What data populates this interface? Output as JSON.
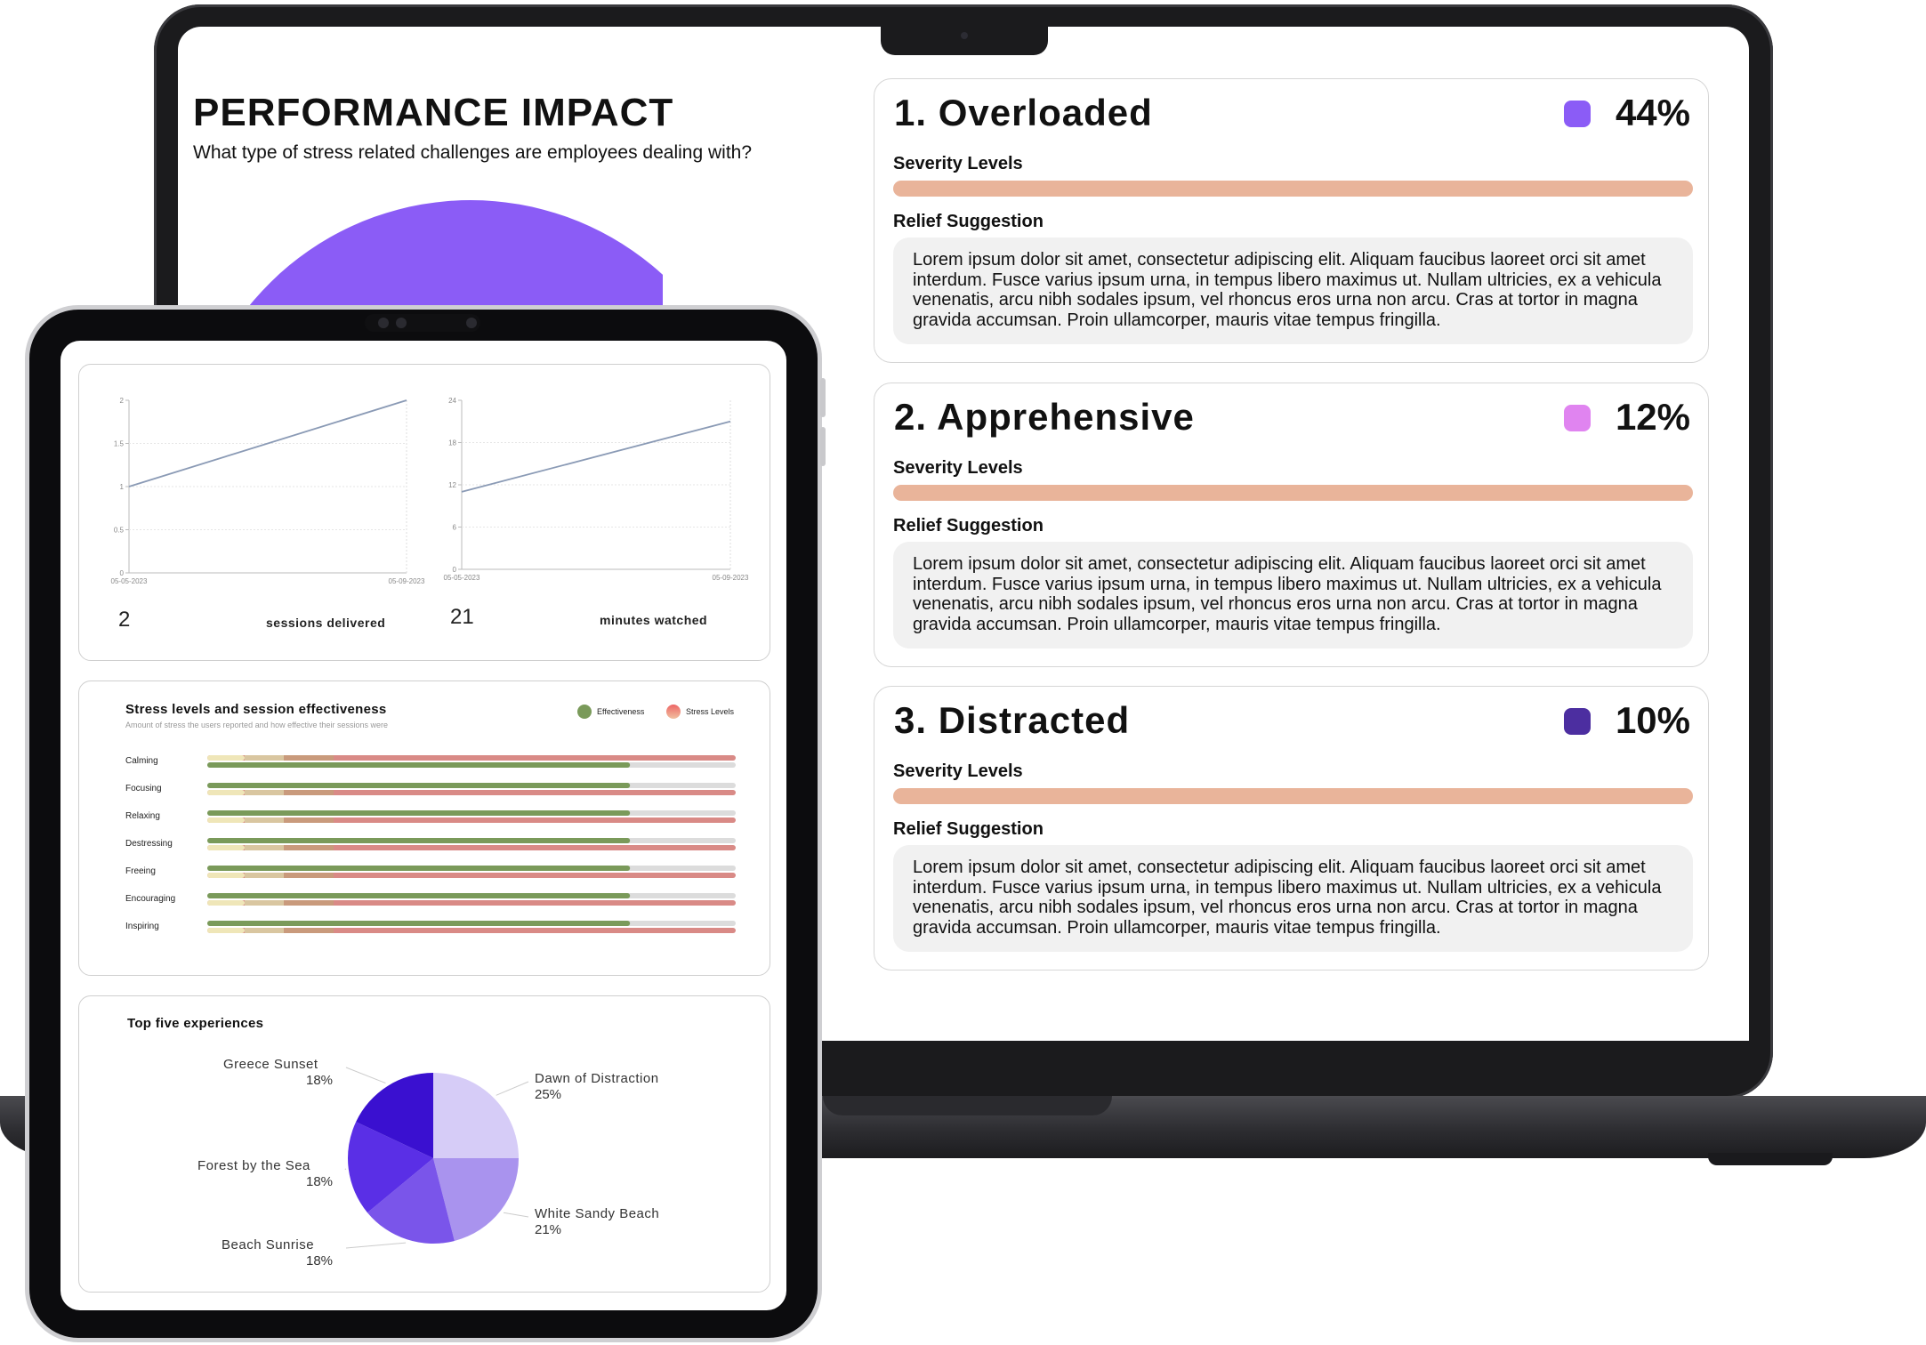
{
  "laptop": {
    "title": "PERFORMANCE IMPACT",
    "subtitle": "What type of stress related challenges are employees dealing with?",
    "challenges": [
      {
        "rank_title": "1. Overloaded",
        "percent": "44%",
        "color": "#8b5cf6",
        "severity_label": "Severity Levels",
        "relief_label": "Relief Suggestion",
        "relief_text": "Lorem ipsum dolor sit amet, consectetur adipiscing elit. Aliquam faucibus laoreet orci sit amet interdum. Fusce varius ipsum urna, in tempus libero maximus ut. Nullam ultricies, ex a vehicula venenatis, arcu nibh sodales ipsum, vel rhoncus eros urna non arcu. Cras at tortor in magna gravida accumsan. Proin ullamcorper, mauris vitae tempus fringilla."
      },
      {
        "rank_title": "2. Apprehensive",
        "percent": "12%",
        "color": "#e084f0",
        "severity_label": "Severity Levels",
        "relief_label": "Relief Suggestion",
        "relief_text": "Lorem ipsum dolor sit amet, consectetur adipiscing elit. Aliquam faucibus laoreet orci sit amet interdum. Fusce varius ipsum urna, in tempus libero maximus ut. Nullam ultricies, ex a vehicula venenatis, arcu nibh sodales ipsum, vel rhoncus eros urna non arcu. Cras at tortor in magna gravida accumsan. Proin ullamcorper, mauris vitae tempus fringilla."
      },
      {
        "rank_title": "3. Distracted",
        "percent": "10%",
        "color": "#4c2ea0",
        "severity_label": "Severity Levels",
        "relief_label": "Relief Suggestion",
        "relief_text": "Lorem ipsum dolor sit amet, consectetur adipiscing elit. Aliquam faucibus laoreet orci sit amet interdum. Fusce varius ipsum urna, in tempus libero maximus ut. Nullam ultricies, ex a vehicula venenatis, arcu nibh sodales ipsum, vel rhoncus eros urna non arcu. Cras at tortor in magna gravida accumsan. Proin ullamcorper, mauris vitae tempus fringilla."
      }
    ],
    "severity_bar_color": "#e9b49a"
  },
  "tablet": {
    "sessions": {
      "value": "2",
      "label": "sessions delivered"
    },
    "minutes": {
      "value": "21",
      "label": "minutes watched"
    },
    "stress_chart": {
      "title": "Stress levels and session effectiveness",
      "subtitle": "Amount of stress the users reported and how effective their sessions were",
      "legend": [
        {
          "label": "Effectiveness",
          "color": "#7a9a5a"
        },
        {
          "label": "Stress Levels",
          "color": "#e3a08f"
        }
      ]
    },
    "top_five": {
      "title": "Top five experiences"
    }
  },
  "chart_data": [
    {
      "type": "pie",
      "categories": [
        "Overloaded",
        "Apprehensive",
        "Distracted"
      ],
      "values": [
        44,
        12,
        10
      ],
      "colors": [
        "#8b5cf6",
        "#e084f0",
        "#4c2ea0"
      ]
    },
    {
      "type": "line",
      "x": [
        "05-05-2023",
        "05-09-2023"
      ],
      "series": [
        {
          "values": [
            1,
            2
          ]
        }
      ],
      "x_ticks": [
        "05-05-2023",
        "05-09-2023"
      ],
      "y_ticks": [
        "0",
        "0.5",
        "1",
        "1.5",
        "2"
      ],
      "ylim": [
        0,
        2
      ]
    },
    {
      "type": "line",
      "x": [
        "05-05-2023",
        "05-09-2023"
      ],
      "series": [
        {
          "values": [
            11,
            21
          ]
        }
      ],
      "x_ticks": [
        "05-05-2023",
        "05-09-2023"
      ],
      "y_ticks": [
        "0",
        "6",
        "12",
        "18",
        "24"
      ],
      "ylim": [
        0,
        24
      ]
    },
    {
      "type": "bar",
      "orientation": "horizontal",
      "categories": [
        "Calming",
        "Focusing",
        "Relaxing",
        "Destressing",
        "Freeing",
        "Encouraging",
        "Inspiring"
      ],
      "series": [
        {
          "name": "Effectiveness",
          "values": [
            0.8,
            0.8,
            0.8,
            0.8,
            0.8,
            0.8,
            0.8
          ]
        },
        {
          "name": "Stress Levels",
          "values": [
            1.0,
            1.0,
            1.0,
            1.0,
            1.0,
            1.0,
            1.0
          ]
        }
      ],
      "xlim": [
        0,
        1
      ]
    },
    {
      "type": "pie",
      "title": "Top five experiences",
      "categories": [
        "Dawn of Distraction",
        "White Sandy Beach",
        "Beach Sunrise",
        "Forest by the Sea",
        "Greece Sunset"
      ],
      "values": [
        25,
        21,
        18,
        18,
        18
      ],
      "labels": [
        "25%",
        "21%",
        "18%",
        "18%",
        "18%"
      ],
      "colors": [
        "#d6ccf7",
        "#a993ee",
        "#7a55ea",
        "#5a2fe6",
        "#3a10d0"
      ]
    }
  ]
}
